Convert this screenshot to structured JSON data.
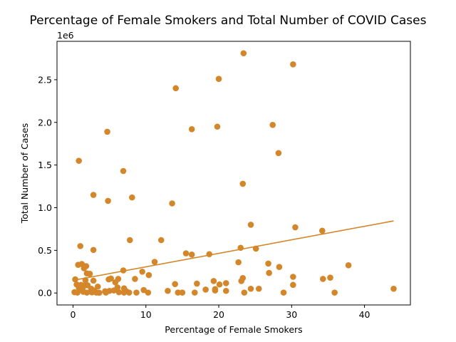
{
  "chart_data": {
    "type": "scatter",
    "title": "Percentage of Female Smokers and Total Number of COVID Cases",
    "xlabel": "Percentage of Female Smokers",
    "ylabel": "Total Number of Cases",
    "y_offset_label": "1e6",
    "xlim": [
      -2.2,
      46.3
    ],
    "ylim": [
      -140000,
      2950000
    ],
    "xticks": [
      0,
      10,
      20,
      30,
      40
    ],
    "xtick_labels": [
      "0",
      "10",
      "20",
      "30",
      "40"
    ],
    "yticks": [
      0,
      500000,
      1000000,
      1500000,
      2000000,
      2500000
    ],
    "ytick_labels": [
      "0.0",
      "0.5",
      "1.0",
      "1.5",
      "2.0",
      "2.5"
    ],
    "grid": false,
    "point_color": "#d4872a",
    "trend_color": "#d4872a",
    "trendline": {
      "x": [
        0.1,
        44.0
      ],
      "y": [
        150000,
        845000
      ]
    },
    "series": [
      {
        "values": [
          [
            23.4,
            2810000
          ],
          [
            30.2,
            2680000
          ],
          [
            20.0,
            2510000
          ],
          [
            14.1,
            2400000
          ],
          [
            27.4,
            1970000
          ],
          [
            19.8,
            1950000
          ],
          [
            16.3,
            1920000
          ],
          [
            4.7,
            1890000
          ],
          [
            28.2,
            1640000
          ],
          [
            0.8,
            1550000
          ],
          [
            6.9,
            1430000
          ],
          [
            23.3,
            1280000
          ],
          [
            2.8,
            1150000
          ],
          [
            8.1,
            1120000
          ],
          [
            4.8,
            1080000
          ],
          [
            13.6,
            1050000
          ],
          [
            24.4,
            800000
          ],
          [
            30.5,
            770000
          ],
          [
            34.2,
            730000
          ],
          [
            7.8,
            620000
          ],
          [
            12.1,
            620000
          ],
          [
            1.0,
            550000
          ],
          [
            23.0,
            530000
          ],
          [
            25.1,
            520000
          ],
          [
            2.8,
            505000
          ],
          [
            15.5,
            465000
          ],
          [
            16.3,
            450000
          ],
          [
            18.7,
            455000
          ],
          [
            11.2,
            365000
          ],
          [
            22.7,
            360000
          ],
          [
            26.8,
            345000
          ],
          [
            37.8,
            325000
          ],
          [
            0.7,
            330000
          ],
          [
            1.2,
            340000
          ],
          [
            1.8,
            315000
          ],
          [
            28.3,
            305000
          ],
          [
            1.5,
            290000
          ],
          [
            6.9,
            265000
          ],
          [
            9.5,
            250000
          ],
          [
            26.9,
            235000
          ],
          [
            1.9,
            230000
          ],
          [
            2.3,
            225000
          ],
          [
            10.4,
            210000
          ],
          [
            30.2,
            190000
          ],
          [
            35.3,
            180000
          ],
          [
            23.3,
            175000
          ],
          [
            34.3,
            165000
          ],
          [
            8.5,
            165000
          ],
          [
            5.2,
            170000
          ],
          [
            4.9,
            160000
          ],
          [
            6.2,
            165000
          ],
          [
            0.3,
            160000
          ],
          [
            1.7,
            150000
          ],
          [
            2.8,
            145000
          ],
          [
            19.3,
            140000
          ],
          [
            23.1,
            140000
          ],
          [
            5.8,
            125000
          ],
          [
            17.0,
            110000
          ],
          [
            21.0,
            115000
          ],
          [
            20.1,
            100000
          ],
          [
            14.0,
            105000
          ],
          [
            30.2,
            95000
          ],
          [
            0.5,
            100000
          ],
          [
            1.1,
            95000
          ],
          [
            1.5,
            85000
          ],
          [
            2.0,
            90000
          ],
          [
            3.4,
            75000
          ],
          [
            6.1,
            65000
          ],
          [
            7.0,
            55000
          ],
          [
            0.8,
            60000
          ],
          [
            1.3,
            55000
          ],
          [
            2.5,
            50000
          ],
          [
            24.4,
            50000
          ],
          [
            25.5,
            50000
          ],
          [
            44.0,
            50000
          ],
          [
            18.2,
            40000
          ],
          [
            19.5,
            45000
          ],
          [
            9.7,
            35000
          ],
          [
            13.0,
            25000
          ],
          [
            21.0,
            25000
          ],
          [
            2.9,
            30000
          ],
          [
            4.4,
            20000
          ],
          [
            5.0,
            25000
          ],
          [
            7.3,
            20000
          ],
          [
            0.2,
            10000
          ],
          [
            0.6,
            5000
          ],
          [
            1.4,
            15000
          ],
          [
            1.9,
            5000
          ],
          [
            2.6,
            8000
          ],
          [
            3.2,
            5000
          ],
          [
            4.5,
            5000
          ],
          [
            6.3,
            10000
          ],
          [
            7.0,
            5000
          ],
          [
            7.7,
            5000
          ],
          [
            8.7,
            5000
          ],
          [
            10.3,
            5000
          ],
          [
            14.4,
            5000
          ],
          [
            15.0,
            5000
          ],
          [
            16.7,
            5000
          ],
          [
            19.5,
            30000
          ],
          [
            23.5,
            5000
          ],
          [
            28.9,
            5000
          ],
          [
            35.9,
            5000
          ],
          [
            3.6,
            3000
          ],
          [
            5.6,
            30000
          ],
          [
            0.9,
            40000
          ]
        ]
      }
    ]
  }
}
